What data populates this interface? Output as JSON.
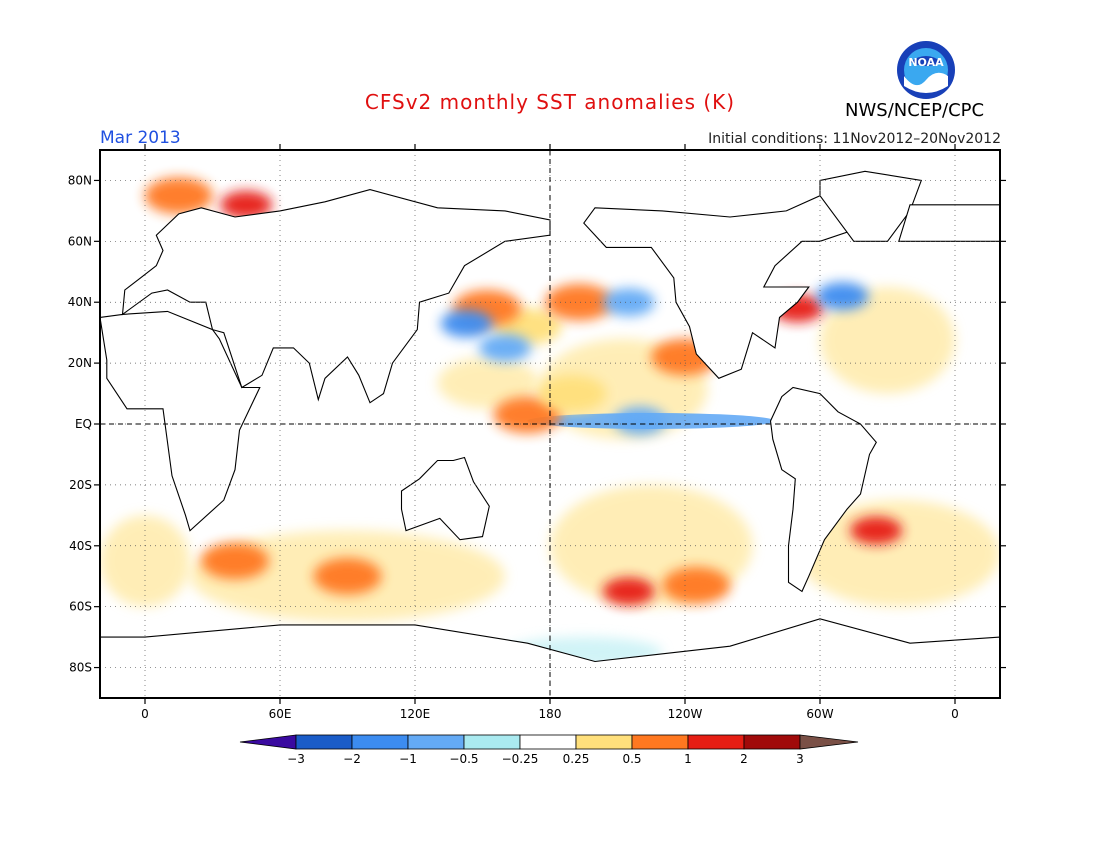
{
  "title": "CFSv2 monthly SST anomalies (K)",
  "agency": "NWS/NCEP/CPC",
  "logo_text": "NOAA",
  "valid_month": "Mar 2013",
  "initial_conditions": "Initial conditions: 11Nov2012–20Nov2012",
  "map": {
    "projection": "equirectangular",
    "lon_range": [
      -20,
      380
    ],
    "lat_range": [
      -90,
      90
    ],
    "lat_ticks": [
      {
        "lat": 80,
        "label": "80N"
      },
      {
        "lat": 60,
        "label": "60N"
      },
      {
        "lat": 40,
        "label": "40N"
      },
      {
        "lat": 20,
        "label": "20N"
      },
      {
        "lat": 0,
        "label": "EQ"
      },
      {
        "lat": -20,
        "label": "20S"
      },
      {
        "lat": -40,
        "label": "40S"
      },
      {
        "lat": -60,
        "label": "60S"
      },
      {
        "lat": -80,
        "label": "80S"
      }
    ],
    "lon_ticks": [
      {
        "lon": 0,
        "label": "0"
      },
      {
        "lon": 60,
        "label": "60E"
      },
      {
        "lon": 120,
        "label": "120E"
      },
      {
        "lon": 180,
        "label": "180"
      },
      {
        "lon": 240,
        "label": "120W"
      },
      {
        "lon": 300,
        "label": "60W"
      },
      {
        "lon": 360,
        "label": "0"
      }
    ],
    "grid": "dotted",
    "dashed_lines": [
      "equator",
      "dateline"
    ],
    "land_color": "#ffffff"
  },
  "colorbar": {
    "labels": [
      "−3",
      "−2",
      "−1",
      "−0.5",
      "−0.25",
      "0.25",
      "0.5",
      "1",
      "2",
      "3"
    ],
    "colors": [
      "#3a0aa0",
      "#1a5cc8",
      "#3c8cf0",
      "#64aaf5",
      "#aaeaf0",
      "#ffffff",
      "#ffe07c",
      "#ff7820",
      "#e61e14",
      "#a00a0a",
      "#7a5046"
    ]
  },
  "anomaly_regions": [
    {
      "lon": 170,
      "lat": 32,
      "level": "0.5"
    },
    {
      "lon": 193,
      "lat": 40,
      "level": "1"
    },
    {
      "lon": 152,
      "lat": 38,
      "level": "1"
    },
    {
      "lon": 143,
      "lat": 33,
      "level": "-1"
    },
    {
      "lon": 160,
      "lat": 25,
      "level": "-0.5"
    },
    {
      "lon": 215,
      "lat": 40,
      "level": "-0.5"
    },
    {
      "lon": 240,
      "lat": 22,
      "level": "1"
    },
    {
      "lon": 170,
      "lat": 3,
      "level": "1"
    },
    {
      "lon": 190,
      "lat": 10,
      "level": "0.5"
    },
    {
      "lon": 220,
      "lat": 1,
      "level": "-0.5"
    },
    {
      "lon": 290,
      "lat": 38,
      "level": "2"
    },
    {
      "lon": 310,
      "lat": 42,
      "level": "-1"
    },
    {
      "lon": 325,
      "lat": -35,
      "level": "2"
    },
    {
      "lon": 40,
      "lat": -45,
      "level": "1"
    },
    {
      "lon": 90,
      "lat": -50,
      "level": "1"
    },
    {
      "lon": 215,
      "lat": -55,
      "level": "2"
    },
    {
      "lon": 245,
      "lat": -53,
      "level": "1"
    },
    {
      "lon": 15,
      "lat": 75,
      "level": "1"
    },
    {
      "lon": 45,
      "lat": 72,
      "level": "2"
    }
  ]
}
